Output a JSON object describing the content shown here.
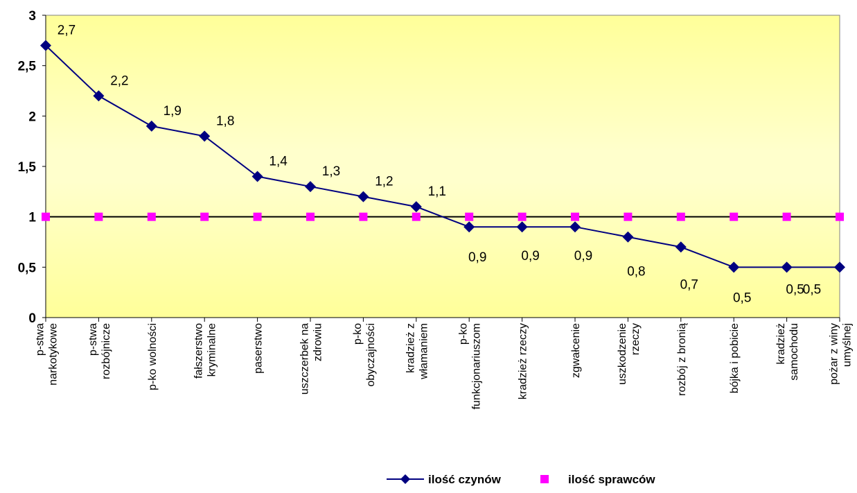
{
  "chart_data": {
    "type": "line",
    "categories": [
      [
        "p-stwa",
        "narkotykowe"
      ],
      [
        "p-stwa",
        "rozbójnicze"
      ],
      [
        "p-ko wolności"
      ],
      [
        "fałszerstwo",
        "kryminalne"
      ],
      [
        "paserstwo"
      ],
      [
        "uszczerbek na",
        "zdrowiu"
      ],
      [
        "p-ko",
        "obyczajności"
      ],
      [
        "kradzież z",
        "włamaniem"
      ],
      [
        "p-ko",
        "funkcjonariuszom"
      ],
      [
        "kradzież rzeczy"
      ],
      [
        "zgwałcenie"
      ],
      [
        "uszkodzenie",
        "rzeczy"
      ],
      [
        "rozbój z bronią"
      ],
      [
        "bójka i pobicie"
      ],
      [
        "kradzież",
        "samochodu"
      ],
      [
        "pożar z winy",
        "umyślnej"
      ]
    ],
    "series": [
      {
        "name": "ilość czynów",
        "color": "#000080",
        "marker": "diamond",
        "values": [
          2.7,
          2.2,
          1.9,
          1.8,
          1.4,
          1.3,
          1.2,
          1.1,
          0.9,
          0.9,
          0.9,
          0.8,
          0.7,
          0.5,
          0.5,
          0.5
        ],
        "labels": [
          "2,7",
          "2,2",
          "1,9",
          "1,8",
          "1,4",
          "1,3",
          "1,2",
          "1,1",
          "0,9",
          "0,9",
          "0,9",
          "0,8",
          "0,7",
          "0,5",
          "0,5",
          "0,5"
        ]
      },
      {
        "name": "ilość sprawców",
        "color": "#ff00ff",
        "marker": "square",
        "values": [
          1,
          1,
          1,
          1,
          1,
          1,
          1,
          1,
          1,
          1,
          1,
          1,
          1,
          1,
          1,
          1
        ]
      }
    ],
    "y_ticks": [
      "0",
      "0,5",
      "1",
      "1,5",
      "2",
      "2,5",
      "3"
    ],
    "ylim": [
      0,
      3
    ],
    "reference_line": 1,
    "background_gradient": [
      "#ffff99",
      "#ffffcc",
      "#ffffcc",
      "#ffff99"
    ],
    "legend_position": "bottom"
  }
}
